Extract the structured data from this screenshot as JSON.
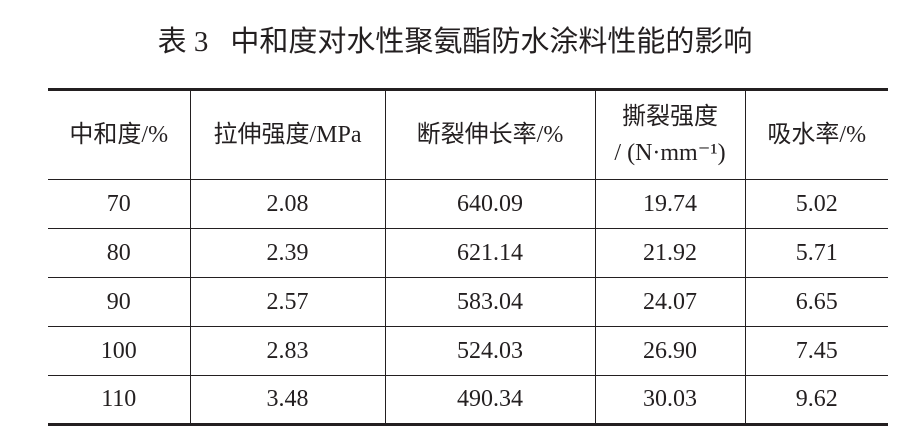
{
  "title": {
    "label": "表 3",
    "text": "中和度对水性聚氨酯防水涂料性能的影响"
  },
  "table": {
    "header": [
      "中和度/%",
      "拉伸强度/MPa",
      "断裂伸长率/%",
      [
        "撕裂强度",
        "/ (N·mm⁻¹)"
      ],
      "吸水率/%"
    ],
    "rows": [
      [
        "70",
        "2.08",
        "640.09",
        "19.74",
        "5.02"
      ],
      [
        "80",
        "2.39",
        "621.14",
        "21.92",
        "5.71"
      ],
      [
        "90",
        "2.57",
        "583.04",
        "24.07",
        "6.65"
      ],
      [
        "100",
        "2.83",
        "524.03",
        "26.90",
        "7.45"
      ],
      [
        "110",
        "3.48",
        "490.34",
        "30.03",
        "9.62"
      ]
    ]
  }
}
